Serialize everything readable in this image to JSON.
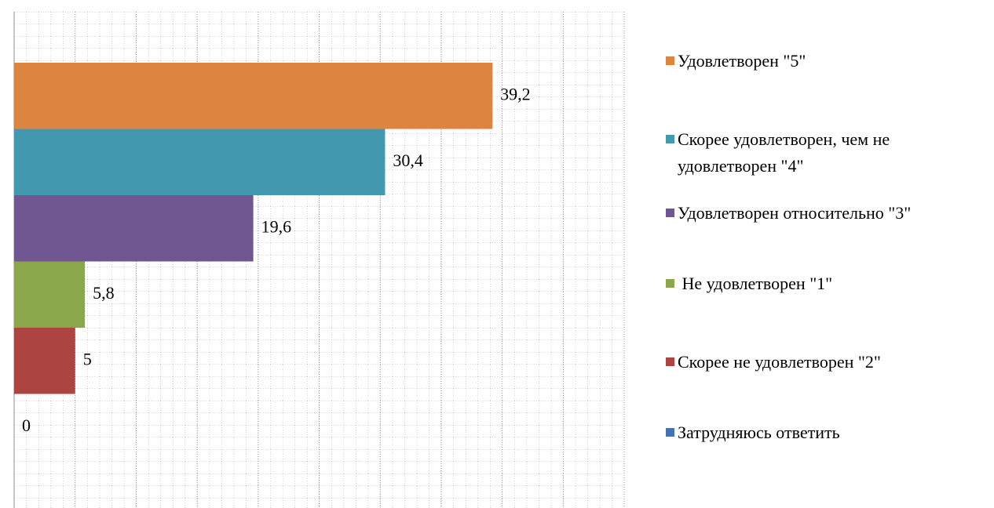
{
  "chart_data": {
    "type": "bar",
    "orientation": "horizontal",
    "series": [
      {
        "name": "Удовлетворен \"5\"",
        "color": "#dd8540",
        "values": [
          39.2
        ],
        "value_labels": [
          "39,2"
        ]
      },
      {
        "name": "Скорее удовлетворен, чем не удовлетворен \"4\"",
        "color": "#4399b0",
        "values": [
          30.4
        ],
        "value_labels": [
          "30,4"
        ]
      },
      {
        "name": "Удовлетворен относительно \"3\"",
        "color": "#6f5690",
        "values": [
          19.6
        ],
        "value_labels": [
          "19,6"
        ]
      },
      {
        "name": " Не удовлетворен \"1\"",
        "color": "#8ba74b",
        "values": [
          5.8
        ],
        "value_labels": [
          "5,8"
        ]
      },
      {
        "name": "Скорее не удовлетворен \"2\"",
        "color": "#ac4442",
        "values": [
          5
        ]
      },
      {
        "name": "Затрудняюсь ответить",
        "color": "#4473b0",
        "values": [
          0
        ]
      }
    ],
    "xlim": [
      0,
      50
    ],
    "xticks": [
      0,
      5,
      10,
      15,
      20,
      25,
      30,
      35,
      40,
      45,
      50
    ],
    "grid": true,
    "legend": "right"
  }
}
